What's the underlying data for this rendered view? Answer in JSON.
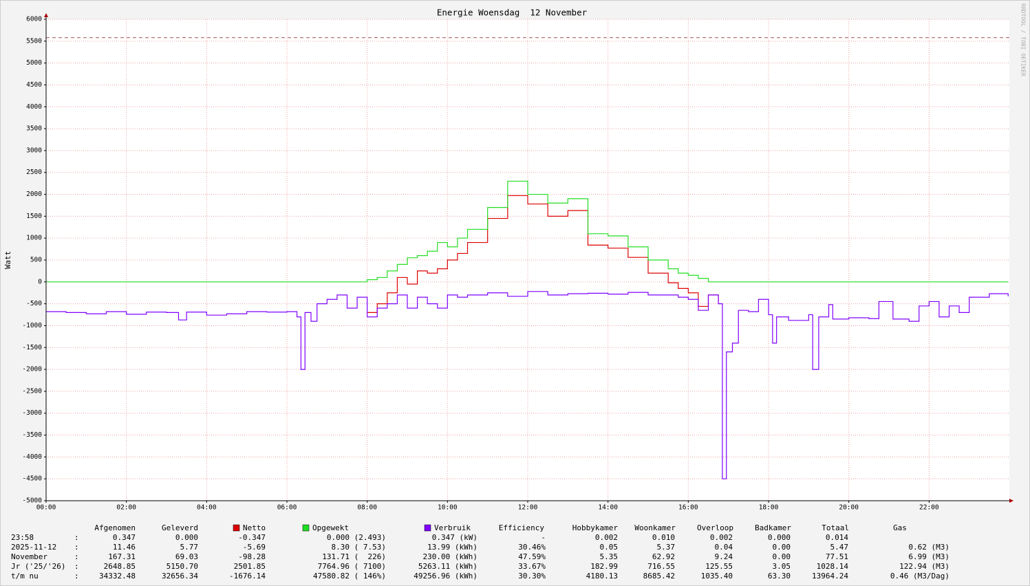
{
  "chart_data": {
    "type": "line",
    "title": "Energie Woensdag  12 November",
    "y_label": "Watt",
    "watermark": "RRDTOOL / TOBI OETIKER",
    "step": true,
    "grid": true,
    "hrule": 5580,
    "xlim": [
      0,
      24
    ],
    "ylim": [
      -5000,
      6000
    ],
    "yticks": [
      -5000,
      -4500,
      -4000,
      -3500,
      -3000,
      -2500,
      -2000,
      -1500,
      -1000,
      -500,
      0,
      500,
      1000,
      1500,
      2000,
      2500,
      3000,
      3500,
      4000,
      4500,
      5000,
      5500,
      6000
    ],
    "xticks": [
      {
        "value": 0,
        "label": "00:00"
      },
      {
        "value": 2,
        "label": "02:00"
      },
      {
        "value": 4,
        "label": "04:00"
      },
      {
        "value": 6,
        "label": "06:00"
      },
      {
        "value": 8,
        "label": "08:00"
      },
      {
        "value": 10,
        "label": "10:00"
      },
      {
        "value": 12,
        "label": "12:00"
      },
      {
        "value": 14,
        "label": "14:00"
      },
      {
        "value": 16,
        "label": "16:00"
      },
      {
        "value": 18,
        "label": "18:00"
      },
      {
        "value": 20,
        "label": "20:00"
      },
      {
        "value": 22,
        "label": "22:00"
      }
    ],
    "x": [
      0,
      0.5,
      1,
      1.5,
      2,
      2.5,
      3,
      3.3,
      3.5,
      4,
      4.5,
      5,
      5.5,
      6,
      6.25,
      6.35,
      6.45,
      6.6,
      6.75,
      7,
      7.25,
      7.5,
      7.75,
      8,
      8.25,
      8.5,
      8.75,
      9,
      9.25,
      9.5,
      9.75,
      10,
      10.25,
      10.5,
      11,
      11.5,
      12,
      12.5,
      13,
      13.5,
      14,
      14.5,
      15,
      15.5,
      15.75,
      16,
      16.25,
      16.5,
      16.75,
      16.85,
      16.95,
      17.1,
      17.25,
      17.5,
      17.75,
      18,
      18.1,
      18.2,
      18.5,
      19,
      19.1,
      19.25,
      19.5,
      19.6,
      20,
      20.5,
      20.75,
      21,
      21.1,
      21.5,
      21.75,
      22,
      22.25,
      22.5,
      22.75,
      23,
      23.5,
      23.97
    ],
    "series": [
      {
        "name": "Netto",
        "color": "#dd0000",
        "values": [
          null,
          null,
          null,
          null,
          null,
          null,
          null,
          null,
          null,
          null,
          null,
          null,
          null,
          null,
          null,
          null,
          null,
          null,
          null,
          null,
          null,
          null,
          null,
          -700,
          -500,
          -250,
          100,
          -50,
          250,
          200,
          300,
          500,
          650,
          900,
          1450,
          1970,
          1780,
          1500,
          1630,
          840,
          770,
          560,
          200,
          -20,
          -150,
          -250,
          -560,
          -300,
          -450,
          null,
          null,
          null,
          null,
          null,
          null,
          null,
          null,
          null,
          null,
          null,
          null,
          null,
          null,
          null,
          null,
          null,
          null,
          null,
          null,
          null,
          null,
          null,
          null,
          null,
          null,
          null,
          null,
          null
        ]
      },
      {
        "name": "Opgewekt",
        "color": "#22dd22",
        "values": [
          0,
          0,
          0,
          0,
          0,
          0,
          0,
          0,
          0,
          0,
          0,
          0,
          0,
          0,
          0,
          0,
          0,
          0,
          0,
          0,
          0,
          0,
          0,
          50,
          100,
          250,
          400,
          550,
          600,
          700,
          900,
          800,
          1000,
          1200,
          1700,
          2300,
          2000,
          1800,
          1900,
          1100,
          1050,
          800,
          500,
          300,
          200,
          150,
          80,
          0,
          0,
          0,
          0,
          0,
          0,
          0,
          0,
          0,
          0,
          0,
          0,
          0,
          0,
          0,
          0,
          0,
          0,
          0,
          0,
          0,
          0,
          0,
          0,
          0,
          0,
          0,
          0,
          0,
          0,
          0
        ]
      },
      {
        "name": "Verbruik",
        "color": "#7f00ff",
        "values": [
          -680,
          -700,
          -730,
          -680,
          -740,
          -690,
          -700,
          -870,
          -690,
          -760,
          -730,
          -680,
          -690,
          -680,
          -800,
          -2000,
          -700,
          -900,
          -500,
          -400,
          -300,
          -600,
          -350,
          -800,
          -600,
          -500,
          -300,
          -600,
          -350,
          -500,
          -600,
          -300,
          -350,
          -300,
          -250,
          -330,
          -220,
          -300,
          -270,
          -260,
          -280,
          -240,
          -300,
          -300,
          -350,
          -400,
          -650,
          -300,
          -500,
          -4500,
          -1600,
          -1400,
          -650,
          -680,
          -400,
          -750,
          -1400,
          -800,
          -880,
          -750,
          -2000,
          -800,
          -520,
          -850,
          -820,
          -840,
          -450,
          -450,
          -850,
          -900,
          -550,
          -450,
          -800,
          -550,
          -700,
          -350,
          -270,
          -330
        ]
      }
    ]
  },
  "table": {
    "sep": ":",
    "header": [
      "Afgenomen",
      "Geleverd",
      "Efficiency",
      "Hobbykamer",
      "Woonkamer",
      "Overloop",
      "Badkamer",
      "Totaal",
      "Gas"
    ],
    "rows": [
      [
        "23:58",
        "0.347",
        "0.000",
        "-0.347",
        "0.000 (2.493)",
        "0.347 (kW)",
        "-",
        "0.002",
        "0.010",
        "0.002",
        "0.000",
        "0.014"
      ],
      [
        "2025-11-12",
        "11.46",
        "5.77",
        "-5.69",
        "8.30 ( 7.53)",
        "13.99 (kWh)",
        "30.46%",
        "0.05",
        "5.37",
        "0.04",
        "0.00",
        "5.47",
        "0.62 (M3)"
      ],
      [
        "November",
        "167.31",
        "69.03",
        "-98.28",
        "131.71 (  226)",
        "230.00 (kWh)",
        "47.59%",
        "5.35",
        "62.92",
        "9.24",
        "0.00",
        "77.51",
        "6.99 (M3)"
      ],
      [
        "Jr ('25/'26)",
        "2648.85",
        "5150.70",
        "2501.85",
        "7764.96 ( 7100)",
        "5263.11 (kWh)",
        "33.67%",
        "182.99",
        "716.55",
        "125.55",
        "3.05",
        "1028.14",
        "122.94 (M3)"
      ],
      [
        "t/m nu",
        "34332.48",
        "32656.34",
        "-1676.14",
        "47580.82 ( 146%)",
        "49256.96 (kWh)",
        "30.30%",
        "4180.13",
        "8685.42",
        "1035.40",
        "63.30",
        "13964.24",
        "0.46 (M3/Dag)"
      ]
    ]
  }
}
